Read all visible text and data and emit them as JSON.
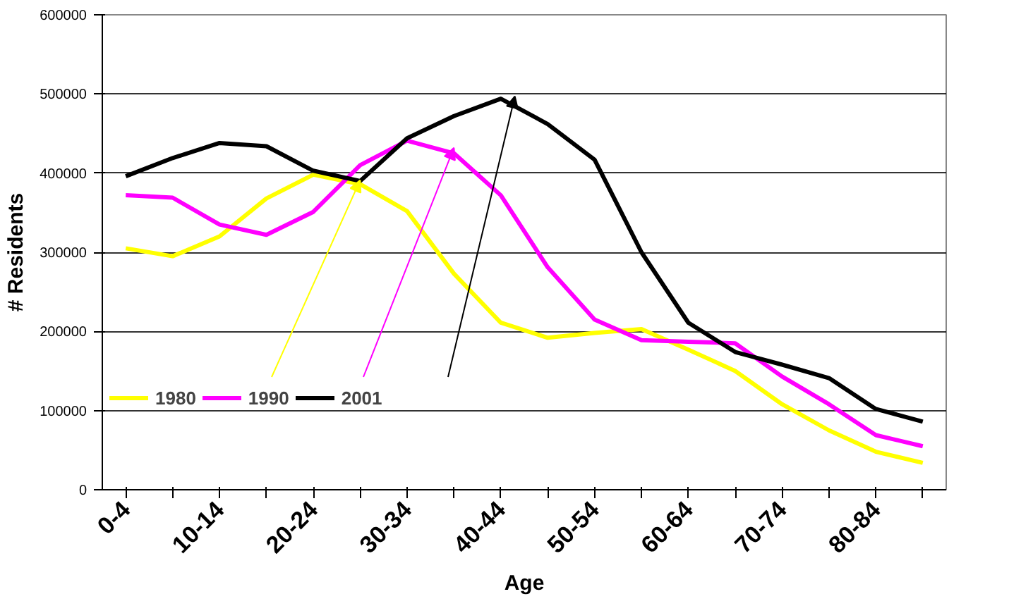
{
  "chart_data": {
    "type": "line",
    "xlabel": "Age",
    "ylabel": "# Residents",
    "categories": [
      "0-4",
      null,
      "10-14",
      null,
      "20-24",
      null,
      "30-34",
      null,
      "40-44",
      null,
      "50-54",
      null,
      "60-64",
      null,
      "70-74",
      null,
      "80-84",
      null
    ],
    "series": [
      {
        "name": "1980",
        "color": "#ffff00",
        "values": [
          305000,
          295000,
          320000,
          368000,
          398000,
          386000,
          352000,
          273000,
          211000,
          192000,
          198000,
          203000,
          177000,
          150000,
          108000,
          75000,
          48000,
          34000
        ]
      },
      {
        "name": "1990",
        "color": "#ff00ff",
        "values": [
          372000,
          369000,
          335000,
          322000,
          351000,
          410000,
          441000,
          425000,
          372000,
          281000,
          215000,
          189000,
          187000,
          185000,
          143000,
          108000,
          69000,
          55000
        ]
      },
      {
        "name": "2001",
        "color": "#000000",
        "values": [
          396000,
          419000,
          438000,
          434000,
          403000,
          390000,
          444000,
          472000,
          494000,
          462000,
          417000,
          300000,
          211000,
          174000,
          158000,
          141000,
          102000,
          86000
        ]
      }
    ],
    "ylim": [
      0,
      600000
    ],
    "yticks": [
      0,
      100000,
      200000,
      300000,
      400000,
      500000,
      600000
    ],
    "grid": "y",
    "legend": "left",
    "marker": "none",
    "line_style": "solid"
  }
}
